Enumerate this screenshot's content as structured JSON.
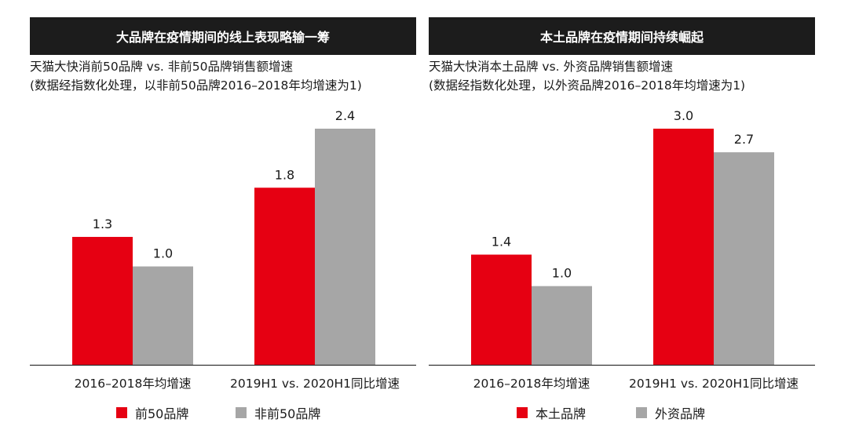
{
  "colors": {
    "series_a": "#e60012",
    "series_b": "#a6a6a6",
    "banner_bg": "#1c1c1c"
  },
  "chart_data": [
    {
      "type": "bar",
      "banner": "大品牌在疫情期间的线上表现略输一筹",
      "title": "天猫大快消前50品牌 vs. 非前50品牌销售额增速",
      "subtitle": "(数据经指数化处理，以非前50品牌2016–2018年均增速为1)",
      "categories": [
        "2016–2018年均增速",
        "2019H1 vs. 2020H1同比增速"
      ],
      "series": [
        {
          "name": "前50品牌",
          "values": [
            1.3,
            1.8
          ]
        },
        {
          "name": "非前50品牌",
          "values": [
            1.0,
            2.4
          ]
        }
      ],
      "ylim": [
        0,
        2.4
      ],
      "grid": false,
      "legend": "bottom"
    },
    {
      "type": "bar",
      "banner": "本土品牌在疫情期间持续崛起",
      "title": "天猫大快消本土品牌 vs. 外资品牌销售额增速",
      "subtitle": "(数据经指数化处理，以外资品牌2016–2018年均增速为1)",
      "categories": [
        "2016–2018年均增速",
        "2019H1 vs. 2020H1同比增速"
      ],
      "series": [
        {
          "name": "本土品牌",
          "values": [
            1.4,
            3.0
          ]
        },
        {
          "name": "外资品牌",
          "values": [
            1.0,
            2.7
          ]
        }
      ],
      "ylim": [
        0,
        3.0
      ],
      "grid": false,
      "legend": "bottom"
    }
  ]
}
